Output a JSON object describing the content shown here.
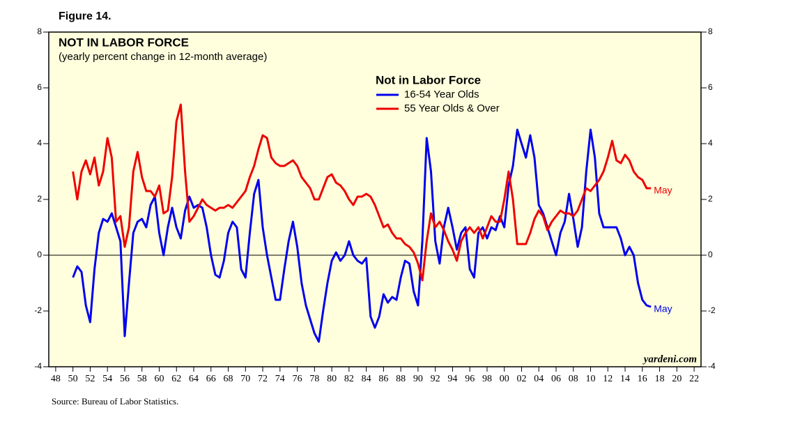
{
  "figure": "Figure 14.",
  "source": "Source: Bureau of Labor Statistics.",
  "chart_data": {
    "type": "line",
    "title": "NOT IN LABOR FORCE",
    "subtitle": "(yearly percent change in 12-month average)",
    "legend_title": "Not in Labor Force",
    "watermark": "yardeni.com",
    "annotations": [
      {
        "text": "May",
        "series": 1
      },
      {
        "text": "May",
        "series": 0
      }
    ],
    "xlim": [
      1947.2,
      2022.8
    ],
    "ylim": [
      -4,
      8
    ],
    "yticks": [
      -4,
      -2,
      0,
      2,
      4,
      6,
      8
    ],
    "xticks": [
      {
        "value": 1948,
        "label": "48"
      },
      {
        "value": 1950,
        "label": "50"
      },
      {
        "value": 1952,
        "label": "52"
      },
      {
        "value": 1954,
        "label": "54"
      },
      {
        "value": 1956,
        "label": "56"
      },
      {
        "value": 1958,
        "label": "58"
      },
      {
        "value": 1960,
        "label": "60"
      },
      {
        "value": 1962,
        "label": "62"
      },
      {
        "value": 1964,
        "label": "64"
      },
      {
        "value": 1966,
        "label": "66"
      },
      {
        "value": 1968,
        "label": "68"
      },
      {
        "value": 1970,
        "label": "70"
      },
      {
        "value": 1972,
        "label": "72"
      },
      {
        "value": 1974,
        "label": "74"
      },
      {
        "value": 1976,
        "label": "76"
      },
      {
        "value": 1978,
        "label": "78"
      },
      {
        "value": 1980,
        "label": "80"
      },
      {
        "value": 1982,
        "label": "82"
      },
      {
        "value": 1984,
        "label": "84"
      },
      {
        "value": 1986,
        "label": "86"
      },
      {
        "value": 1988,
        "label": "88"
      },
      {
        "value": 1990,
        "label": "90"
      },
      {
        "value": 1992,
        "label": "92"
      },
      {
        "value": 1994,
        "label": "94"
      },
      {
        "value": 1996,
        "label": "96"
      },
      {
        "value": 1998,
        "label": "98"
      },
      {
        "value": 2000,
        "label": "00"
      },
      {
        "value": 2002,
        "label": "02"
      },
      {
        "value": 2004,
        "label": "04"
      },
      {
        "value": 2006,
        "label": "06"
      },
      {
        "value": 2008,
        "label": "08"
      },
      {
        "value": 2010,
        "label": "10"
      },
      {
        "value": 2012,
        "label": "12"
      },
      {
        "value": 2014,
        "label": "14"
      },
      {
        "value": 2016,
        "label": "16"
      },
      {
        "value": 2018,
        "label": "18"
      },
      {
        "value": 2020,
        "label": "20"
      },
      {
        "value": 2022,
        "label": "22"
      }
    ],
    "x": [
      1950,
      1950.5,
      1951,
      1951.5,
      1952,
      1952.5,
      1953,
      1953.5,
      1954,
      1954.5,
      1955,
      1955.5,
      1956,
      1956.5,
      1957,
      1957.5,
      1958,
      1958.5,
      1959,
      1959.5,
      1960,
      1960.5,
      1961,
      1961.5,
      1962,
      1962.5,
      1963,
      1963.5,
      1964,
      1964.5,
      1965,
      1965.5,
      1966,
      1966.5,
      1967,
      1967.5,
      1968,
      1968.5,
      1969,
      1969.5,
      1970,
      1970.5,
      1971,
      1971.5,
      1972,
      1972.5,
      1973,
      1973.5,
      1974,
      1974.5,
      1975,
      1975.5,
      1976,
      1976.5,
      1977,
      1977.5,
      1978,
      1978.5,
      1979,
      1979.5,
      1980,
      1980.5,
      1981,
      1981.5,
      1982,
      1982.5,
      1983,
      1983.5,
      1984,
      1984.5,
      1985,
      1985.5,
      1986,
      1986.5,
      1987,
      1987.5,
      1988,
      1988.5,
      1989,
      1989.5,
      1990,
      1990.5,
      1991,
      1991.5,
      1992,
      1992.5,
      1993,
      1993.5,
      1994,
      1994.5,
      1995,
      1995.5,
      1996,
      1996.5,
      1997,
      1997.5,
      1998,
      1998.5,
      1999,
      1999.5,
      2000,
      2000.5,
      2001,
      2001.5,
      2002,
      2002.5,
      2003,
      2003.5,
      2004,
      2004.5,
      2005,
      2005.5,
      2006,
      2006.5,
      2007,
      2007.5,
      2008,
      2008.5,
      2009,
      2009.5,
      2010,
      2010.5,
      2011,
      2011.5,
      2012,
      2012.5,
      2013,
      2013.5,
      2014,
      2014.5,
      2015,
      2015.5,
      2016,
      2016.5,
      2017
    ],
    "series": [
      {
        "name": "16-54 Year Olds",
        "color": "#0000ee",
        "values": [
          -0.8,
          -0.4,
          -0.6,
          -1.8,
          -2.4,
          -0.5,
          0.8,
          1.3,
          1.2,
          1.5,
          1.0,
          0.5,
          -2.9,
          -1.0,
          0.8,
          1.2,
          1.3,
          1.0,
          1.8,
          2.1,
          0.8,
          0.0,
          1.0,
          1.7,
          1.0,
          0.6,
          1.6,
          2.1,
          1.7,
          1.8,
          1.7,
          1.0,
          0.0,
          -0.7,
          -0.8,
          -0.2,
          0.8,
          1.2,
          1.0,
          -0.5,
          -0.8,
          0.8,
          2.2,
          2.7,
          1.0,
          0.0,
          -0.8,
          -1.6,
          -1.6,
          -0.5,
          0.5,
          1.2,
          0.3,
          -1.0,
          -1.8,
          -2.3,
          -2.8,
          -3.1,
          -2.0,
          -1.0,
          -0.2,
          0.1,
          -0.2,
          0.0,
          0.5,
          0.0,
          -0.2,
          -0.3,
          -0.1,
          -2.2,
          -2.6,
          -2.2,
          -1.4,
          -1.7,
          -1.5,
          -1.6,
          -0.8,
          -0.2,
          -0.3,
          -1.3,
          -1.8,
          0.5,
          4.2,
          3.0,
          0.5,
          -0.3,
          1.0,
          1.7,
          1.0,
          0.2,
          0.8,
          1.0,
          -0.5,
          -0.8,
          0.8,
          1.0,
          0.6,
          1.0,
          0.9,
          1.4,
          1.0,
          2.5,
          3.2,
          4.5,
          4.0,
          3.5,
          4.3,
          3.5,
          1.8,
          1.5,
          1.0,
          0.5,
          0.0,
          0.8,
          1.2,
          2.2,
          1.3,
          0.3,
          1.0,
          3.0,
          4.5,
          3.5,
          1.5,
          1.0,
          1.0,
          1.0,
          1.0,
          0.6,
          0.0,
          0.3,
          0.0,
          -1.0,
          -1.6,
          -1.8,
          -1.85
        ]
      },
      {
        "name": "55 Year Olds & Over",
        "color": "#ee0000",
        "values": [
          3.0,
          2.0,
          3.0,
          3.4,
          2.9,
          3.5,
          2.5,
          3.0,
          4.2,
          3.5,
          1.2,
          1.4,
          0.3,
          1.0,
          3.0,
          3.7,
          2.8,
          2.3,
          2.3,
          2.1,
          2.5,
          1.5,
          1.6,
          2.8,
          4.8,
          5.4,
          3.0,
          1.2,
          1.4,
          1.7,
          2.0,
          1.8,
          1.7,
          1.6,
          1.7,
          1.7,
          1.8,
          1.7,
          1.9,
          2.1,
          2.3,
          2.8,
          3.2,
          3.8,
          4.3,
          4.2,
          3.5,
          3.3,
          3.2,
          3.2,
          3.3,
          3.4,
          3.2,
          2.8,
          2.6,
          2.4,
          2.0,
          2.0,
          2.4,
          2.8,
          2.9,
          2.6,
          2.5,
          2.3,
          2.0,
          1.8,
          2.1,
          2.1,
          2.2,
          2.1,
          1.8,
          1.4,
          1.0,
          1.1,
          0.8,
          0.6,
          0.6,
          0.4,
          0.3,
          0.1,
          -0.3,
          -0.9,
          0.5,
          1.5,
          1.0,
          1.2,
          0.9,
          0.5,
          0.2,
          -0.2,
          0.5,
          0.8,
          1.0,
          0.8,
          1.0,
          0.6,
          1.0,
          1.4,
          1.2,
          1.2,
          2.0,
          3.0,
          2.0,
          0.4,
          0.4,
          0.4,
          0.8,
          1.3,
          1.6,
          1.4,
          0.9,
          1.2,
          1.4,
          1.6,
          1.5,
          1.5,
          1.4,
          1.6,
          2.0,
          2.4,
          2.3,
          2.5,
          2.7,
          3.0,
          3.5,
          4.1,
          3.4,
          3.3,
          3.6,
          3.4,
          3.0,
          2.8,
          2.7,
          2.4,
          2.4
        ]
      }
    ]
  }
}
